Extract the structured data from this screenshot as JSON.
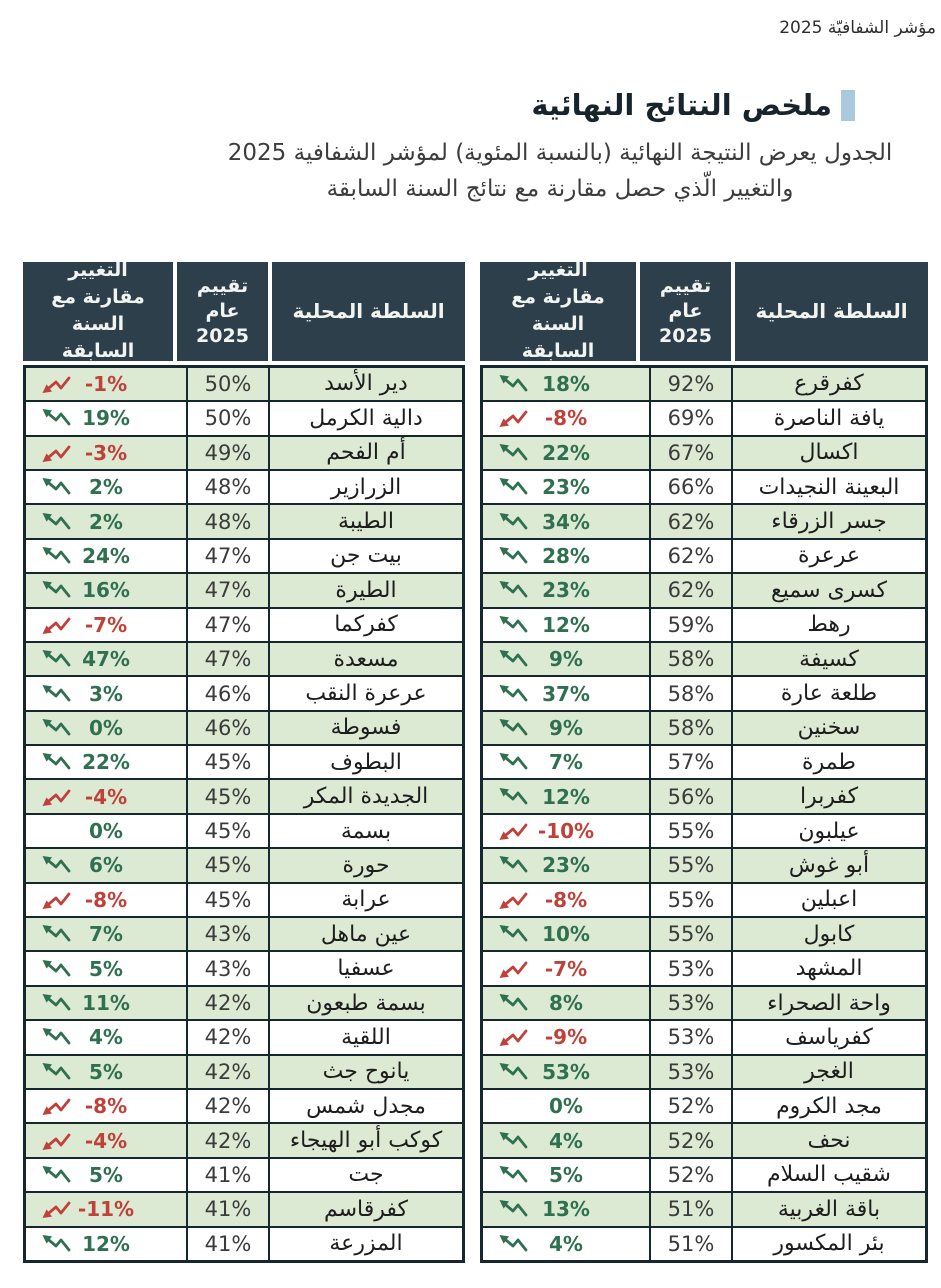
{
  "page": {
    "top_header": "مؤشر الشفافيّة 2025",
    "title": "ملخص النتائج النهائية",
    "subtitle_line1": "الجدول يعرض النتيجة النهائية (بالنسبة المئوية) لمؤشر الشفافية 2025",
    "subtitle_line2": "والتغيير الّذي حصل مقارنة مع نتائج السنة السابقة"
  },
  "table_headers": {
    "authority": "السلطة المحلية",
    "score": "تقييم عام 2025",
    "change": "التغيير مقارنة مع السنة السابقة"
  },
  "icons": {
    "positive_trend": "zigzag-line-rising-to-upper-left-with-arrowhead",
    "negative_trend": "zigzag-line-falling-to-lower-left-with-arrowhead",
    "title_marker": "light-blue-square"
  },
  "colors": {
    "header_bg": "#2d3f4a",
    "header_text": "#f2f4f1",
    "row_green": "#dcead4",
    "row_white": "#ffffff",
    "border": "#17272f",
    "positive": "#2f7050",
    "negative": "#c04139",
    "title_marker": "#a9cade"
  },
  "tables": {
    "right": {
      "rows": [
        {
          "authority": "كفرقرع",
          "score": "92%",
          "change": "18%",
          "trend": "up"
        },
        {
          "authority": "يافة الناصرة",
          "score": "69%",
          "change": "-8%",
          "trend": "down"
        },
        {
          "authority": "اكسال",
          "score": "67%",
          "change": "22%",
          "trend": "up"
        },
        {
          "authority": "البعينة النجيدات",
          "score": "66%",
          "change": "23%",
          "trend": "up"
        },
        {
          "authority": "جسر الزرقاء",
          "score": "62%",
          "change": "34%",
          "trend": "up"
        },
        {
          "authority": "عرعرة",
          "score": "62%",
          "change": "28%",
          "trend": "up"
        },
        {
          "authority": "كسرى سميع",
          "score": "62%",
          "change": "23%",
          "trend": "up"
        },
        {
          "authority": "رهط",
          "score": "59%",
          "change": "12%",
          "trend": "up"
        },
        {
          "authority": "كسيفة",
          "score": "58%",
          "change": "9%",
          "trend": "up"
        },
        {
          "authority": "طلعة عارة",
          "score": "58%",
          "change": "37%",
          "trend": "up"
        },
        {
          "authority": "سخنين",
          "score": "58%",
          "change": "9%",
          "trend": "up"
        },
        {
          "authority": "طمرة",
          "score": "57%",
          "change": "7%",
          "trend": "up"
        },
        {
          "authority": "كفربرا",
          "score": "56%",
          "change": "12%",
          "trend": "up"
        },
        {
          "authority": "عيلبون",
          "score": "55%",
          "change": "-10%",
          "trend": "down"
        },
        {
          "authority": "أبو غوش",
          "score": "55%",
          "change": "23%",
          "trend": "up"
        },
        {
          "authority": "اعبلين",
          "score": "55%",
          "change": "-8%",
          "trend": "down"
        },
        {
          "authority": "كابول",
          "score": "55%",
          "change": "10%",
          "trend": "up"
        },
        {
          "authority": "المشهد",
          "score": "53%",
          "change": "-7%",
          "trend": "down"
        },
        {
          "authority": "واحة الصحراء",
          "score": "53%",
          "change": "8%",
          "trend": "up"
        },
        {
          "authority": "كفرياسف",
          "score": "53%",
          "change": "-9%",
          "trend": "down"
        },
        {
          "authority": "الغجر",
          "score": "53%",
          "change": "53%",
          "trend": "up"
        },
        {
          "authority": "مجد الكروم",
          "score": "52%",
          "change": "0%",
          "trend": "none"
        },
        {
          "authority": "نحف",
          "score": "52%",
          "change": "4%",
          "trend": "up"
        },
        {
          "authority": "شقيب السلام",
          "score": "52%",
          "change": "5%",
          "trend": "up"
        },
        {
          "authority": "باقة الغربية",
          "score": "51%",
          "change": "13%",
          "trend": "up"
        },
        {
          "authority": "بئر المكسور",
          "score": "51%",
          "change": "4%",
          "trend": "up"
        }
      ]
    },
    "left": {
      "rows": [
        {
          "authority": "دير الأسد",
          "score": "50%",
          "change": "-1%",
          "trend": "down"
        },
        {
          "authority": "دالية الكرمل",
          "score": "50%",
          "change": "19%",
          "trend": "up"
        },
        {
          "authority": "أم الفحم",
          "score": "49%",
          "change": "-3%",
          "trend": "down"
        },
        {
          "authority": "الزرازير",
          "score": "48%",
          "change": "2%",
          "trend": "up"
        },
        {
          "authority": "الطيبة",
          "score": "48%",
          "change": "2%",
          "trend": "up"
        },
        {
          "authority": "بيت جن",
          "score": "47%",
          "change": "24%",
          "trend": "up"
        },
        {
          "authority": "الطيرة",
          "score": "47%",
          "change": "16%",
          "trend": "up"
        },
        {
          "authority": "كفركما",
          "score": "47%",
          "change": "-7%",
          "trend": "down"
        },
        {
          "authority": "مسعدة",
          "score": "47%",
          "change": "47%",
          "trend": "up"
        },
        {
          "authority": "عرعرة النقب",
          "score": "46%",
          "change": "3%",
          "trend": "up"
        },
        {
          "authority": "فسوطة",
          "score": "46%",
          "change": "0%",
          "trend": "up"
        },
        {
          "authority": "البطوف",
          "score": "45%",
          "change": "22%",
          "trend": "up"
        },
        {
          "authority": "الجديدة المكر",
          "score": "45%",
          "change": "-4%",
          "trend": "down"
        },
        {
          "authority": "بسمة",
          "score": "45%",
          "change": "0%",
          "trend": "none"
        },
        {
          "authority": "حورة",
          "score": "45%",
          "change": "6%",
          "trend": "up"
        },
        {
          "authority": "عرابة",
          "score": "45%",
          "change": "-8%",
          "trend": "down"
        },
        {
          "authority": "عين ماهل",
          "score": "43%",
          "change": "7%",
          "trend": "up"
        },
        {
          "authority": "عسفيا",
          "score": "43%",
          "change": "5%",
          "trend": "up"
        },
        {
          "authority": "بسمة طبعون",
          "score": "42%",
          "change": "11%",
          "trend": "up"
        },
        {
          "authority": "اللقية",
          "score": "42%",
          "change": "4%",
          "trend": "up"
        },
        {
          "authority": "يانوح جث",
          "score": "42%",
          "change": "5%",
          "trend": "up"
        },
        {
          "authority": "مجدل شمس",
          "score": "42%",
          "change": "-8%",
          "trend": "down"
        },
        {
          "authority": "كوكب أبو الهيجاء",
          "score": "42%",
          "change": "-4%",
          "trend": "down"
        },
        {
          "authority": "جت",
          "score": "41%",
          "change": "5%",
          "trend": "up"
        },
        {
          "authority": "كفرقاسم",
          "score": "41%",
          "change": "-11%",
          "trend": "down"
        },
        {
          "authority": "المزرعة",
          "score": "41%",
          "change": "12%",
          "trend": "up"
        }
      ]
    }
  }
}
